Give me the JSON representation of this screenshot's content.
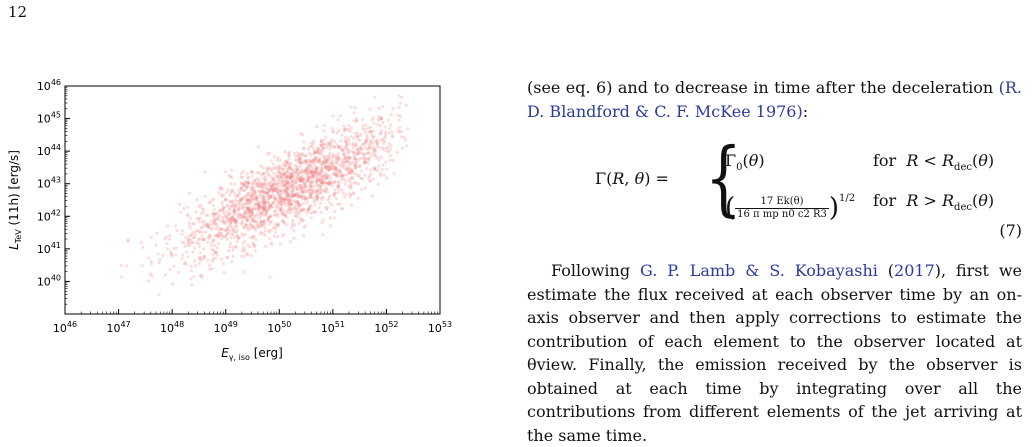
{
  "page_number": "12",
  "chart_data": {
    "type": "scatter",
    "xlabel": "E_γ, iso [erg]",
    "ylabel": "L_TeV (11h) [erg/s]",
    "x_scale": "log",
    "y_scale": "log",
    "xlim": [
      1e+46,
      1e+53
    ],
    "ylim": [
      1e+39,
      1e+46
    ],
    "x_ticks": [
      "10^46",
      "10^47",
      "10^48",
      "10^49",
      "10^50",
      "10^51",
      "10^52",
      "10^53"
    ],
    "y_ticks": [
      "10^40",
      "10^41",
      "10^42",
      "10^43",
      "10^44",
      "10^45",
      "10^46"
    ],
    "marker_color": "#f08080",
    "marker_opacity": 0.25,
    "trend": {
      "log_x_range": [
        46.7,
        52.3
      ],
      "approx_relation": "log10(L) ≈ 0.82·log10(E) + 1.7",
      "scatter_dex": 0.6
    },
    "num_points": 2000,
    "grid": false
  },
  "text": {
    "para1_prefix": "(see eq. 6) and to decrease in time after the deceleration",
    "para1_cite": "(R. D. Blandford & C. F. McKee 1976)",
    "para1_suffix": ":",
    "eq_lhs": "Γ(R, θ) =",
    "eq_case1": "Γ0(θ)",
    "eq_case1_cond": "for  R < Rdec(θ)",
    "eq_case2_num": "17 Ek(θ)",
    "eq_case2_den": "16 π mp n0 c2 R3",
    "eq_case2_exp": "1/2",
    "eq_case2_cond": "for  R > Rdec(θ)",
    "eq_number": "(7)",
    "para2_cite": "G. P. Lamb & S. Kobayashi",
    "para2_year": "2017",
    "para2_text_a": "Following",
    "para2_text_b": "(",
    "para2_text_c": "), first we estimate the flux received at each observer time by an on-axis observer and then apply corrections to estimate the contribution of each element to the observer located at θview. Finally, the emission received by the observer is obtained at each time by integrating over all the contributions from different elements of the jet arriving at the same time."
  }
}
